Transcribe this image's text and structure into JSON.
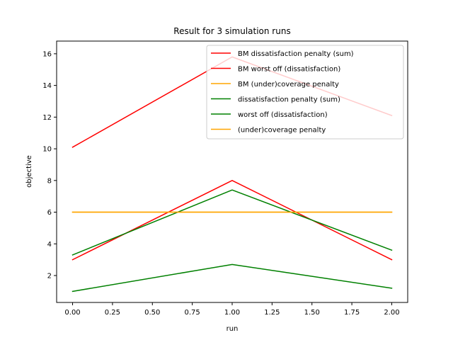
{
  "chart_data": {
    "type": "line",
    "title": "Result for 3 simulation runs",
    "xlabel": "run",
    "ylabel": "objective",
    "x": [
      0,
      1,
      2
    ],
    "xlim": [
      -0.1,
      2.1
    ],
    "ylim": [
      0.3,
      16.8
    ],
    "xticks": [
      "0.00",
      "0.25",
      "0.50",
      "0.75",
      "1.00",
      "1.25",
      "1.50",
      "1.75",
      "2.00"
    ],
    "xtick_values": [
      0,
      0.25,
      0.5,
      0.75,
      1.0,
      1.25,
      1.5,
      1.75,
      2.0
    ],
    "yticks": [
      "2",
      "4",
      "6",
      "8",
      "10",
      "12",
      "14",
      "16"
    ],
    "ytick_values": [
      2,
      4,
      6,
      8,
      10,
      12,
      14,
      16
    ],
    "grid": false,
    "legend_position": "top-right",
    "series": [
      {
        "name": "BM dissatisfaction penalty (sum)",
        "color": "#ff0000",
        "values": [
          10.1,
          15.8,
          12.1
        ]
      },
      {
        "name": "BM worst off (dissatisfaction)",
        "color": "#ff0000",
        "values": [
          3.0,
          8.0,
          3.0
        ]
      },
      {
        "name": "BM (under)coverage penalty",
        "color": "#ffa500",
        "values": [
          6.0,
          6.0,
          6.0
        ]
      },
      {
        "name": "dissatisfaction penalty (sum)",
        "color": "#008000",
        "values": [
          3.3,
          7.4,
          3.6
        ]
      },
      {
        "name": "worst off (dissatisfaction)",
        "color": "#008000",
        "values": [
          1.0,
          2.7,
          1.2
        ]
      },
      {
        "name": "(under)coverage penalty",
        "color": "#ffa500",
        "values": [
          6.0,
          6.0,
          6.0
        ]
      }
    ]
  }
}
